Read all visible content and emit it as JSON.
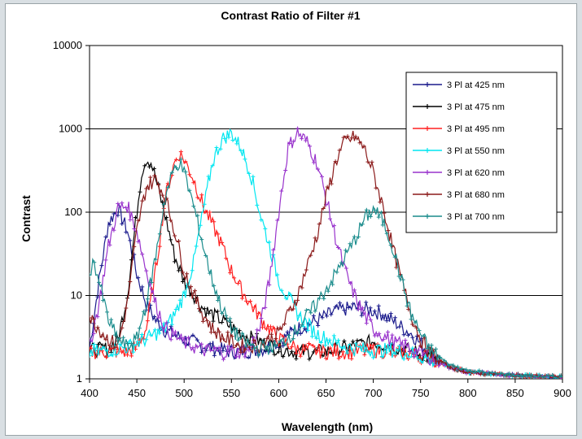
{
  "chart_data": {
    "type": "line",
    "title": "Contrast Ratio of Filter #1",
    "xlabel": "Wavelength (nm)",
    "ylabel": "Contrast",
    "x_ticks": [
      "400",
      "450",
      "500",
      "550",
      "600",
      "650",
      "700",
      "750",
      "800",
      "850",
      "900"
    ],
    "y_ticks": [
      "1",
      "10",
      "100",
      "1000",
      "10000"
    ],
    "xlim": [
      400,
      900
    ],
    "ylim": [
      1,
      10000
    ],
    "y_scale": "log",
    "grid": "horizontal",
    "legend_position": "top-right",
    "series": [
      {
        "name": "3 Pl at 425 nm",
        "color": "#1a1a8c",
        "marker": "plus",
        "points": [
          [
            400,
            2.3
          ],
          [
            410,
            15
          ],
          [
            420,
            75
          ],
          [
            430,
            110
          ],
          [
            440,
            60
          ],
          [
            450,
            18
          ],
          [
            460,
            8
          ],
          [
            470,
            5
          ],
          [
            480,
            3.8
          ],
          [
            500,
            3
          ],
          [
            520,
            2.5
          ],
          [
            550,
            2.1
          ],
          [
            580,
            2.2
          ],
          [
            600,
            2.8
          ],
          [
            620,
            4
          ],
          [
            640,
            5
          ],
          [
            660,
            6.5
          ],
          [
            680,
            7.2
          ],
          [
            700,
            6.5
          ],
          [
            710,
            6
          ],
          [
            720,
            5
          ],
          [
            740,
            3.5
          ],
          [
            760,
            2
          ],
          [
            780,
            1.4
          ],
          [
            800,
            1.2
          ],
          [
            850,
            1.1
          ],
          [
            900,
            1.05
          ]
        ]
      },
      {
        "name": "3 Pl at 475 nm",
        "color": "#000000",
        "marker": "plus",
        "points": [
          [
            400,
            2.2
          ],
          [
            420,
            2.3
          ],
          [
            430,
            3
          ],
          [
            440,
            10
          ],
          [
            450,
            100
          ],
          [
            455,
            300
          ],
          [
            460,
            440
          ],
          [
            465,
            400
          ],
          [
            470,
            250
          ],
          [
            480,
            90
          ],
          [
            490,
            30
          ],
          [
            500,
            15
          ],
          [
            520,
            7
          ],
          [
            540,
            5
          ],
          [
            560,
            3.5
          ],
          [
            580,
            2.8
          ],
          [
            600,
            2.3
          ],
          [
            620,
            2.1
          ],
          [
            640,
            2.1
          ],
          [
            660,
            2.2
          ],
          [
            680,
            2.5
          ],
          [
            700,
            2.8
          ],
          [
            720,
            2.4
          ],
          [
            740,
            2.2
          ],
          [
            760,
            1.8
          ],
          [
            780,
            1.4
          ],
          [
            800,
            1.2
          ],
          [
            850,
            1.1
          ],
          [
            900,
            1.05
          ]
        ]
      },
      {
        "name": "3 Pl at 495 nm",
        "color": "#ff2020",
        "marker": "plus",
        "points": [
          [
            400,
            2.1
          ],
          [
            440,
            2.1
          ],
          [
            450,
            2.4
          ],
          [
            460,
            4
          ],
          [
            470,
            20
          ],
          [
            480,
            150
          ],
          [
            490,
            400
          ],
          [
            495,
            500
          ],
          [
            500,
            430
          ],
          [
            510,
            250
          ],
          [
            520,
            120
          ],
          [
            530,
            70
          ],
          [
            540,
            40
          ],
          [
            550,
            20
          ],
          [
            560,
            12
          ],
          [
            570,
            8
          ],
          [
            580,
            5.5
          ],
          [
            590,
            4
          ],
          [
            600,
            3
          ],
          [
            620,
            2.3
          ],
          [
            650,
            2.1
          ],
          [
            680,
            2.1
          ],
          [
            700,
            2.2
          ],
          [
            720,
            2.1
          ],
          [
            740,
            2
          ],
          [
            760,
            1.8
          ],
          [
            780,
            1.4
          ],
          [
            800,
            1.2
          ],
          [
            850,
            1.1
          ],
          [
            900,
            1.05
          ]
        ]
      },
      {
        "name": "3 Pl at 550 nm",
        "color": "#00e6f0",
        "marker": "plus",
        "points": [
          [
            400,
            2.1
          ],
          [
            420,
            2.2
          ],
          [
            440,
            2.4
          ],
          [
            460,
            3
          ],
          [
            480,
            4
          ],
          [
            490,
            6
          ],
          [
            500,
            10
          ],
          [
            510,
            25
          ],
          [
            520,
            100
          ],
          [
            530,
            400
          ],
          [
            540,
            750
          ],
          [
            550,
            900
          ],
          [
            560,
            600
          ],
          [
            570,
            300
          ],
          [
            580,
            100
          ],
          [
            590,
            40
          ],
          [
            600,
            15
          ],
          [
            620,
            6
          ],
          [
            640,
            3.5
          ],
          [
            660,
            2.7
          ],
          [
            680,
            2.3
          ],
          [
            700,
            2.2
          ],
          [
            720,
            2.2
          ],
          [
            740,
            2
          ],
          [
            760,
            1.7
          ],
          [
            780,
            1.4
          ],
          [
            800,
            1.2
          ],
          [
            850,
            1.1
          ],
          [
            900,
            1.05
          ]
        ]
      },
      {
        "name": "3 Pl at 620 nm",
        "color": "#9933cc",
        "marker": "plus",
        "points": [
          [
            400,
            2.4
          ],
          [
            410,
            8
          ],
          [
            420,
            40
          ],
          [
            430,
            110
          ],
          [
            440,
            120
          ],
          [
            450,
            60
          ],
          [
            460,
            20
          ],
          [
            470,
            8
          ],
          [
            480,
            4
          ],
          [
            500,
            2.7
          ],
          [
            520,
            2.2
          ],
          [
            540,
            2.1
          ],
          [
            560,
            2.1
          ],
          [
            570,
            2.4
          ],
          [
            580,
            4
          ],
          [
            590,
            15
          ],
          [
            600,
            100
          ],
          [
            610,
            600
          ],
          [
            620,
            900
          ],
          [
            630,
            700
          ],
          [
            640,
            400
          ],
          [
            650,
            150
          ],
          [
            660,
            50
          ],
          [
            670,
            20
          ],
          [
            680,
            10
          ],
          [
            690,
            6
          ],
          [
            700,
            4
          ],
          [
            720,
            2.8
          ],
          [
            740,
            2.3
          ],
          [
            760,
            1.8
          ],
          [
            780,
            1.4
          ],
          [
            800,
            1.2
          ],
          [
            850,
            1.1
          ],
          [
            900,
            1.05
          ]
        ]
      },
      {
        "name": "3 Pl at 680 nm",
        "color": "#8b1a1a",
        "marker": "plus",
        "points": [
          [
            400,
            5.5
          ],
          [
            410,
            4
          ],
          [
            420,
            3
          ],
          [
            430,
            2.5
          ],
          [
            440,
            8
          ],
          [
            450,
            60
          ],
          [
            460,
            200
          ],
          [
            470,
            250
          ],
          [
            480,
            150
          ],
          [
            490,
            60
          ],
          [
            500,
            20
          ],
          [
            510,
            10
          ],
          [
            520,
            6
          ],
          [
            530,
            4
          ],
          [
            540,
            3.2
          ],
          [
            560,
            2.5
          ],
          [
            580,
            2.5
          ],
          [
            600,
            3.5
          ],
          [
            620,
            10
          ],
          [
            640,
            50
          ],
          [
            650,
            150
          ],
          [
            660,
            400
          ],
          [
            670,
            700
          ],
          [
            680,
            800
          ],
          [
            690,
            600
          ],
          [
            700,
            300
          ],
          [
            710,
            120
          ],
          [
            720,
            40
          ],
          [
            730,
            15
          ],
          [
            740,
            6
          ],
          [
            750,
            3
          ],
          [
            760,
            2
          ],
          [
            780,
            1.4
          ],
          [
            800,
            1.2
          ],
          [
            850,
            1.1
          ],
          [
            900,
            1.05
          ]
        ]
      },
      {
        "name": "3 Pl at 700 nm",
        "color": "#1a8c8c",
        "marker": "plus",
        "points": [
          [
            400,
            20
          ],
          [
            405,
            25
          ],
          [
            410,
            15
          ],
          [
            420,
            5
          ],
          [
            430,
            3
          ],
          [
            440,
            2.4
          ],
          [
            450,
            3
          ],
          [
            460,
            8
          ],
          [
            470,
            30
          ],
          [
            480,
            150
          ],
          [
            490,
            350
          ],
          [
            495,
            400
          ],
          [
            500,
            300
          ],
          [
            510,
            120
          ],
          [
            520,
            40
          ],
          [
            530,
            15
          ],
          [
            540,
            7
          ],
          [
            550,
            4
          ],
          [
            560,
            3
          ],
          [
            570,
            2.5
          ],
          [
            580,
            2.3
          ],
          [
            600,
            2.5
          ],
          [
            620,
            4
          ],
          [
            640,
            8
          ],
          [
            660,
            18
          ],
          [
            680,
            45
          ],
          [
            690,
            80
          ],
          [
            700,
            110
          ],
          [
            710,
            80
          ],
          [
            720,
            40
          ],
          [
            730,
            15
          ],
          [
            740,
            6
          ],
          [
            750,
            3.5
          ],
          [
            760,
            2.2
          ],
          [
            780,
            1.5
          ],
          [
            800,
            1.25
          ],
          [
            850,
            1.1
          ],
          [
            900,
            1.05
          ]
        ]
      }
    ]
  }
}
